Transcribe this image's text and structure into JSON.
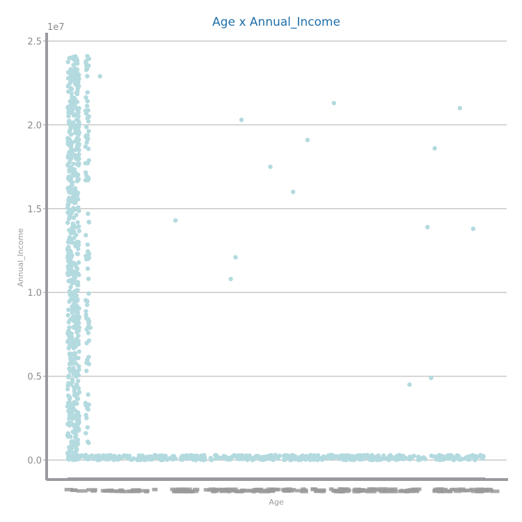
{
  "chart_data": {
    "type": "scatter",
    "title": "Age x Annual_Income",
    "xlabel": "Age",
    "ylabel": "Annual_Income",
    "y_offset_label": "1e7",
    "yticks": [
      0.0,
      0.5,
      1.0,
      1.5,
      2.0,
      2.5
    ],
    "ytick_labels": [
      "0.0",
      "0.5",
      "1.0",
      "1.5",
      "2.0",
      "2.5"
    ],
    "ylim": [
      -0.12,
      2.53
    ],
    "y_scale": 10000000,
    "x_axis": "categorical, many overlapping unreadable tick labels",
    "grid": "horizontal",
    "series": [
      {
        "values_sampled": [
          {
            "x": 0.95,
            "y": 2.29
          },
          {
            "x": 4.1,
            "y": 1.43
          },
          {
            "x": 6.4,
            "y": 1.08
          },
          {
            "x": 6.6,
            "y": 1.21
          },
          {
            "x": 6.85,
            "y": 2.03
          },
          {
            "x": 8.05,
            "y": 1.75
          },
          {
            "x": 9.0,
            "y": 1.6
          },
          {
            "x": 9.6,
            "y": 1.91
          },
          {
            "x": 10.7,
            "y": 2.13
          },
          {
            "x": 13.85,
            "y": 0.45
          },
          {
            "x": 14.6,
            "y": 1.39
          },
          {
            "x": 14.75,
            "y": 0.49
          },
          {
            "x": 14.9,
            "y": 1.86
          },
          {
            "x": 15.95,
            "y": 2.1
          },
          {
            "x": 16.5,
            "y": 1.38
          },
          {
            "x": 0.35,
            "y": 1.87
          },
          {
            "x": 0.35,
            "y": 1.67
          },
          {
            "x": 0.45,
            "y": 1.2
          },
          {
            "x": 0.4,
            "y": 0.78
          },
          {
            "x": 0.55,
            "y": 0.79
          },
          {
            "x": 0.35,
            "y": 0.34
          }
        ],
        "dense_cluster": {
          "x_range": [
            -0.4,
            0.3
          ],
          "y_range": [
            0.0,
            2.41
          ]
        },
        "baseline_band": {
          "x_range": [
            -0.4,
            17.0
          ],
          "y_range": [
            0.0,
            0.03
          ]
        }
      }
    ],
    "x_range": [
      -0.6,
      17.6
    ]
  },
  "colors": {
    "points": "#b3dadf",
    "title": "#1f6fa8",
    "grid": "#c8c8c8",
    "spine": "#9a999e",
    "tick_text": "#8a8a8a"
  }
}
